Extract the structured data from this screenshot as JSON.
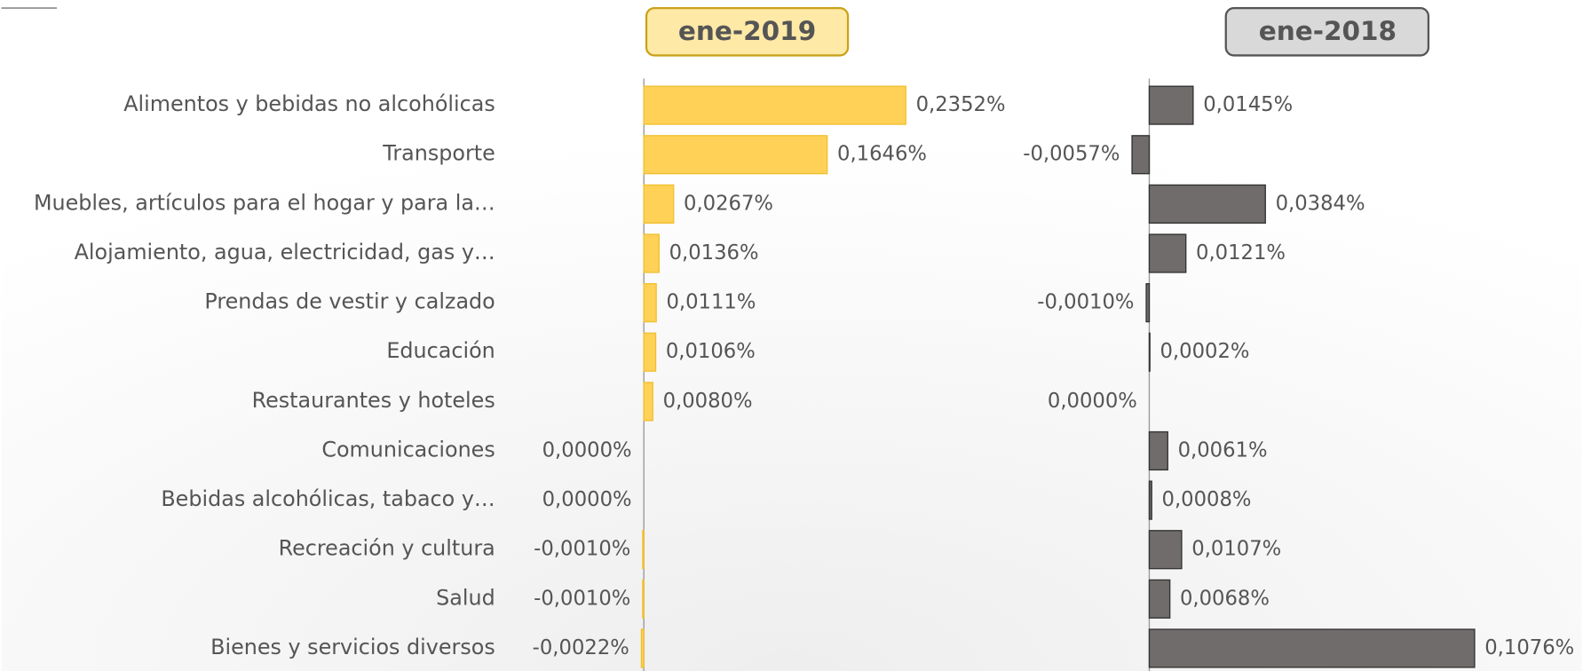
{
  "chart_data": [
    {
      "type": "bar",
      "orientation": "horizontal",
      "title": "ene-2019",
      "color": "#ffd157",
      "categories": [
        "Alimentos y bebidas no alcohólicas",
        "Transporte",
        "Muebles, artículos para el hogar y para la…",
        "Alojamiento, agua, electricidad, gas y…",
        "Prendas de vestir y calzado",
        "Educación",
        "Restaurantes y hoteles",
        "Comunicaciones",
        "Bebidas alcohólicas, tabaco y…",
        "Recreación y cultura",
        "Salud",
        "Bienes y servicios diversos"
      ],
      "values": [
        0.2352,
        0.1646,
        0.0267,
        0.0136,
        0.0111,
        0.0106,
        0.008,
        0.0,
        0.0,
        -0.001,
        -0.001,
        -0.0022
      ],
      "value_labels": [
        "0,2352%",
        "0,1646%",
        "0,0267%",
        "0,0136%",
        "0,0111%",
        "0,0106%",
        "0,0080%",
        "0,0000%",
        "0,0000%",
        "-0,0010%",
        "-0,0010%",
        "-0,0022%"
      ],
      "xlim": [
        -0.1,
        0.3
      ]
    },
    {
      "type": "bar",
      "orientation": "horizontal",
      "title": "ene-2018",
      "color": "#706c6b",
      "values": [
        0.0145,
        -0.0057,
        0.0384,
        0.0121,
        -0.001,
        0.0002,
        0.0,
        0.0061,
        0.0008,
        0.0107,
        0.0068,
        0.1076
      ],
      "value_labels": [
        "0,0145%",
        "-0,0057%",
        "0,0384%",
        "0,0121%",
        "-0,0010%",
        "0,0002%",
        "0,0000%",
        "0,0061%",
        "0,0008%",
        "0,0107%",
        "0,0068%",
        "0,1076%"
      ],
      "xlim": [
        -0.04,
        0.11
      ]
    }
  ]
}
